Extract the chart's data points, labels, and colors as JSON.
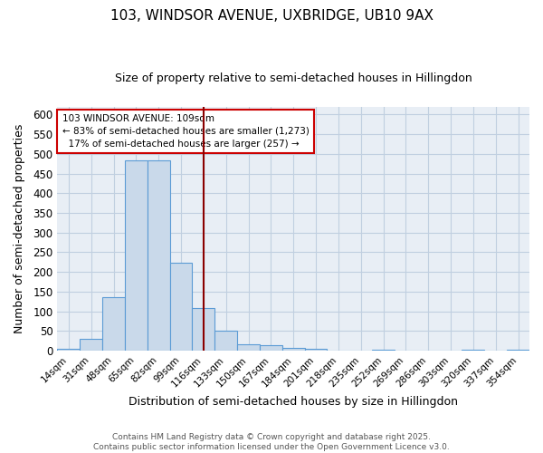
{
  "title1": "103, WINDSOR AVENUE, UXBRIDGE, UB10 9AX",
  "title2": "Size of property relative to semi-detached houses in Hillingdon",
  "xlabel": "Distribution of semi-detached houses by size in Hillingdon",
  "ylabel": "Number of semi-detached properties",
  "categories": [
    "14sqm",
    "31sqm",
    "48sqm",
    "65sqm",
    "82sqm",
    "99sqm",
    "116sqm",
    "133sqm",
    "150sqm",
    "167sqm",
    "184sqm",
    "201sqm",
    "218sqm",
    "235sqm",
    "252sqm",
    "269sqm",
    "286sqm",
    "303sqm",
    "320sqm",
    "337sqm",
    "354sqm"
  ],
  "values": [
    5,
    29,
    135,
    484,
    484,
    224,
    107,
    51,
    15,
    14,
    6,
    5,
    0,
    0,
    2,
    0,
    0,
    0,
    3,
    0,
    3
  ],
  "bar_color": "#c9d9ea",
  "bar_edge_color": "#5b9bd5",
  "grid_color": "#c0cfe0",
  "bg_color": "#e8eef5",
  "vline_x": 6.0,
  "vline_color": "#8b0000",
  "annotation_line1": "103 WINDSOR AVENUE: 109sqm",
  "annotation_line2": "← 83% of semi-detached houses are smaller (1,273)",
  "annotation_line3": "  17% of semi-detached houses are larger (257) →",
  "annotation_box_color": "#ffffff",
  "annotation_box_edge": "#cc0000",
  "footer": "Contains HM Land Registry data © Crown copyright and database right 2025.\nContains public sector information licensed under the Open Government Licence v3.0.",
  "ylim": [
    0,
    620
  ],
  "yticks": [
    0,
    50,
    100,
    150,
    200,
    250,
    300,
    350,
    400,
    450,
    500,
    550,
    600
  ]
}
